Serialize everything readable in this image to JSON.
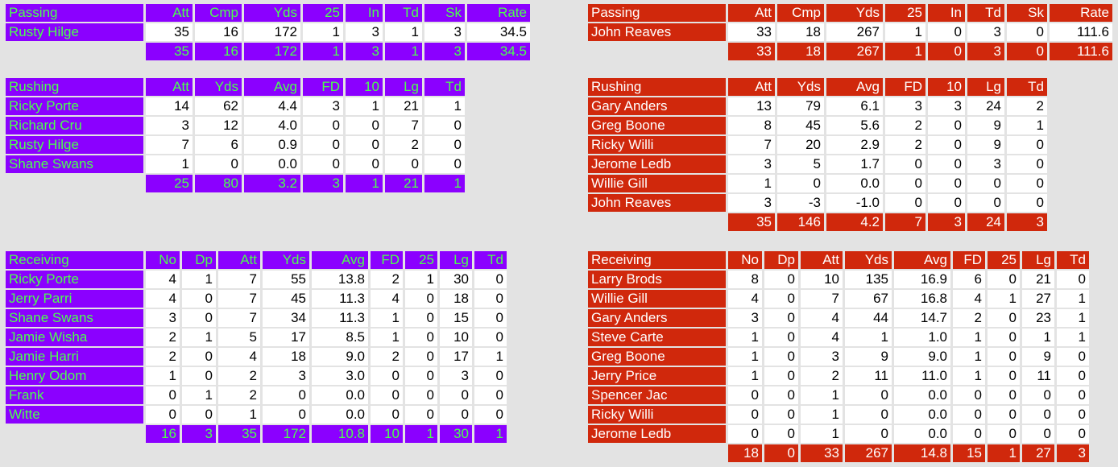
{
  "home": {
    "passing": {
      "title": "Passing",
      "cols": [
        "Att",
        "Cmp",
        "Yds",
        "25",
        "In",
        "Td",
        "Sk",
        "Rate"
      ],
      "rows": [
        {
          "name": "Rusty Hilge",
          "vals": [
            "35",
            "16",
            "172",
            "1",
            "3",
            "1",
            "3",
            "34.5"
          ]
        }
      ],
      "total": [
        "35",
        "16",
        "172",
        "1",
        "3",
        "1",
        "3",
        "34.5"
      ]
    },
    "rushing": {
      "title": "Rushing",
      "cols": [
        "Att",
        "Yds",
        "Avg",
        "FD",
        "10",
        "Lg",
        "Td"
      ],
      "rows": [
        {
          "name": "Ricky Porte",
          "vals": [
            "14",
            "62",
            "4.4",
            "3",
            "1",
            "21",
            "1"
          ]
        },
        {
          "name": "Richard Cru",
          "vals": [
            "3",
            "12",
            "4.0",
            "0",
            "0",
            "7",
            "0"
          ]
        },
        {
          "name": "Rusty Hilge",
          "vals": [
            "7",
            "6",
            "0.9",
            "0",
            "0",
            "2",
            "0"
          ]
        },
        {
          "name": "Shane Swans",
          "vals": [
            "1",
            "0",
            "0.0",
            "0",
            "0",
            "0",
            "0"
          ]
        }
      ],
      "total": [
        "25",
        "80",
        "3.2",
        "3",
        "1",
        "21",
        "1"
      ]
    },
    "receiving": {
      "title": "Receiving",
      "cols": [
        "No",
        "Dp",
        "Att",
        "Yds",
        "Avg",
        "FD",
        "25",
        "Lg",
        "Td"
      ],
      "rows": [
        {
          "name": "Ricky Porte",
          "vals": [
            "4",
            "1",
            "7",
            "55",
            "13.8",
            "2",
            "1",
            "30",
            "0"
          ]
        },
        {
          "name": "Jerry Parri",
          "vals": [
            "4",
            "0",
            "7",
            "45",
            "11.3",
            "4",
            "0",
            "18",
            "0"
          ]
        },
        {
          "name": "Shane Swans",
          "vals": [
            "3",
            "0",
            "7",
            "34",
            "11.3",
            "1",
            "0",
            "15",
            "0"
          ]
        },
        {
          "name": "Jamie Wisha",
          "vals": [
            "2",
            "1",
            "5",
            "17",
            "8.5",
            "1",
            "0",
            "10",
            "0"
          ]
        },
        {
          "name": "Jamie Harri",
          "vals": [
            "2",
            "0",
            "4",
            "18",
            "9.0",
            "2",
            "0",
            "17",
            "1"
          ]
        },
        {
          "name": "Henry Odom",
          "vals": [
            "1",
            "0",
            "2",
            "3",
            "3.0",
            "0",
            "0",
            "3",
            "0"
          ]
        },
        {
          "name": "Frank",
          "vals": [
            "0",
            "1",
            "2",
            "0",
            "0.0",
            "0",
            "0",
            "0",
            "0"
          ]
        },
        {
          "name": "Witte",
          "vals": [
            "0",
            "0",
            "1",
            "0",
            "0.0",
            "0",
            "0",
            "0",
            "0"
          ]
        }
      ],
      "total": [
        "16",
        "3",
        "35",
        "172",
        "10.8",
        "10",
        "1",
        "30",
        "1"
      ]
    }
  },
  "away": {
    "passing": {
      "title": "Passing",
      "cols": [
        "Att",
        "Cmp",
        "Yds",
        "25",
        "In",
        "Td",
        "Sk",
        "Rate"
      ],
      "rows": [
        {
          "name": "John Reaves",
          "vals": [
            "33",
            "18",
            "267",
            "1",
            "0",
            "3",
            "0",
            "111.6"
          ]
        }
      ],
      "total": [
        "33",
        "18",
        "267",
        "1",
        "0",
        "3",
        "0",
        "111.6"
      ]
    },
    "rushing": {
      "title": "Rushing",
      "cols": [
        "Att",
        "Yds",
        "Avg",
        "FD",
        "10",
        "Lg",
        "Td"
      ],
      "rows": [
        {
          "name": "Gary Anders",
          "vals": [
            "13",
            "79",
            "6.1",
            "3",
            "3",
            "24",
            "2"
          ]
        },
        {
          "name": "Greg Boone",
          "vals": [
            "8",
            "45",
            "5.6",
            "2",
            "0",
            "9",
            "1"
          ]
        },
        {
          "name": "Ricky Willi",
          "vals": [
            "7",
            "20",
            "2.9",
            "2",
            "0",
            "9",
            "0"
          ]
        },
        {
          "name": "Jerome Ledb",
          "vals": [
            "3",
            "5",
            "1.7",
            "0",
            "0",
            "3",
            "0"
          ]
        },
        {
          "name": "Willie Gill",
          "vals": [
            "1",
            "0",
            "0.0",
            "0",
            "0",
            "0",
            "0"
          ]
        },
        {
          "name": "John Reaves",
          "vals": [
            "3",
            "-3",
            "-1.0",
            "0",
            "0",
            "0",
            "0"
          ]
        }
      ],
      "total": [
        "35",
        "146",
        "4.2",
        "7",
        "3",
        "24",
        "3"
      ]
    },
    "receiving": {
      "title": "Receiving",
      "cols": [
        "No",
        "Dp",
        "Att",
        "Yds",
        "Avg",
        "FD",
        "25",
        "Lg",
        "Td"
      ],
      "rows": [
        {
          "name": "Larry Brods",
          "vals": [
            "8",
            "0",
            "10",
            "135",
            "16.9",
            "6",
            "0",
            "21",
            "0"
          ]
        },
        {
          "name": "Willie Gill",
          "vals": [
            "4",
            "0",
            "7",
            "67",
            "16.8",
            "4",
            "1",
            "27",
            "1"
          ]
        },
        {
          "name": "Gary Anders",
          "vals": [
            "3",
            "0",
            "4",
            "44",
            "14.7",
            "2",
            "0",
            "23",
            "1"
          ]
        },
        {
          "name": "Steve Carte",
          "vals": [
            "1",
            "0",
            "4",
            "1",
            "1.0",
            "1",
            "0",
            "1",
            "1"
          ]
        },
        {
          "name": "Greg Boone",
          "vals": [
            "1",
            "0",
            "3",
            "9",
            "9.0",
            "1",
            "0",
            "9",
            "0"
          ]
        },
        {
          "name": "Jerry Price",
          "vals": [
            "1",
            "0",
            "2",
            "11",
            "11.0",
            "1",
            "0",
            "11",
            "0"
          ]
        },
        {
          "name": "Spencer Jac",
          "vals": [
            "0",
            "0",
            "1",
            "0",
            "0.0",
            "0",
            "0",
            "0",
            "0"
          ]
        },
        {
          "name": "Ricky Willi",
          "vals": [
            "0",
            "0",
            "1",
            "0",
            "0.0",
            "0",
            "0",
            "0",
            "0"
          ]
        },
        {
          "name": "Jerome Ledb",
          "vals": [
            "0",
            "0",
            "1",
            "0",
            "0.0",
            "0",
            "0",
            "0",
            "0"
          ]
        }
      ],
      "total": [
        "18",
        "0",
        "33",
        "267",
        "14.8",
        "15",
        "1",
        "27",
        "3"
      ]
    }
  },
  "colors": {
    "home_bg": "#8b00ff",
    "home_text": "#4cff4c",
    "away_bg": "#d0280c",
    "away_text": "#ffffff"
  }
}
